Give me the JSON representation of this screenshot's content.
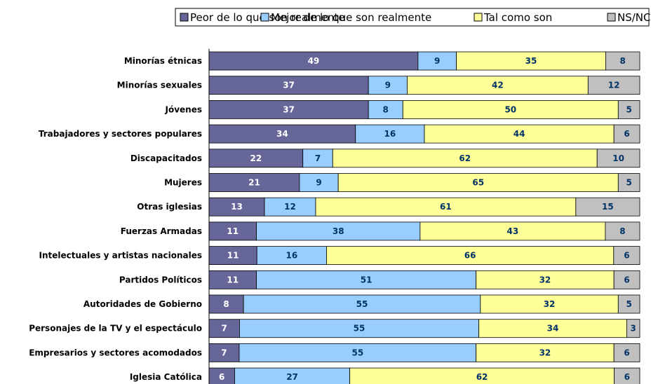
{
  "chart_data": {
    "type": "bar",
    "orientation": "horizontal",
    "stacked": "percent",
    "categories": [
      "Minorías étnicas",
      "Minorías sexuales",
      "Jóvenes",
      "Trabajadores y sectores populares",
      "Discapacitados",
      "Mujeres",
      "Otras iglesias",
      "Fuerzas Armadas",
      "Intelectuales y artistas nacionales",
      "Partidos Políticos",
      "Autoridades de Gobierno",
      "Personajes de la TV y el espectáculo",
      "Empresarios y sectores acomodados",
      "Iglesia Católica"
    ],
    "series": [
      {
        "name": "Peor de lo que son realmente",
        "color": "#666699",
        "values": [
          49,
          37,
          37,
          34,
          22,
          21,
          13,
          11,
          11,
          11,
          8,
          7,
          7,
          6
        ]
      },
      {
        "name": "Mejor de lo que son realmente",
        "color": "#99ccff",
        "values": [
          9,
          9,
          8,
          16,
          7,
          9,
          12,
          38,
          16,
          51,
          55,
          55,
          55,
          27
        ]
      },
      {
        "name": "Tal como son",
        "color": "#ffff99",
        "values": [
          35,
          42,
          50,
          44,
          62,
          65,
          61,
          43,
          66,
          32,
          32,
          34,
          32,
          62
        ]
      },
      {
        "name": "NS/NC",
        "color": "#c0c0c0",
        "values": [
          8,
          12,
          5,
          6,
          10,
          5,
          15,
          8,
          6,
          6,
          5,
          3,
          6,
          6
        ]
      }
    ],
    "legend": "top"
  }
}
